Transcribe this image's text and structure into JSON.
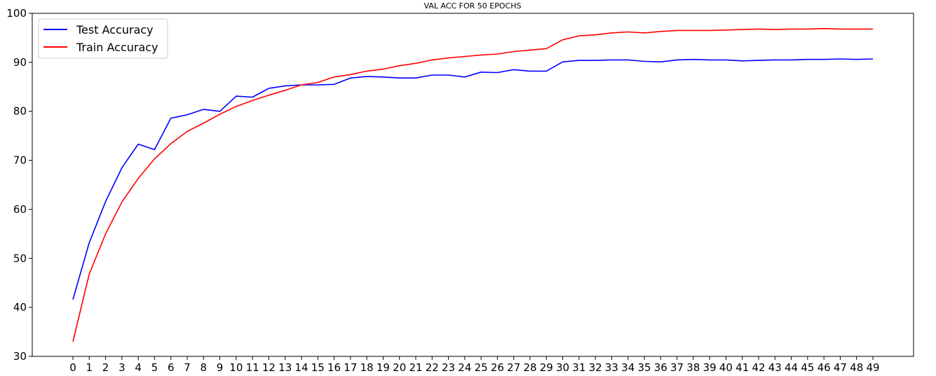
{
  "chart_data": {
    "type": "line",
    "title": "VAL ACC FOR 50 EPOCHS",
    "xlabel": "",
    "ylabel": "",
    "x": [
      0,
      1,
      2,
      3,
      4,
      5,
      6,
      7,
      8,
      9,
      10,
      11,
      12,
      13,
      14,
      15,
      16,
      17,
      18,
      19,
      20,
      21,
      22,
      23,
      24,
      25,
      26,
      27,
      28,
      29,
      30,
      31,
      32,
      33,
      34,
      35,
      36,
      37,
      38,
      39,
      40,
      41,
      42,
      43,
      44,
      45,
      46,
      47,
      48,
      49
    ],
    "xticklabels": [
      "0",
      "1",
      "2",
      "3",
      "4",
      "5",
      "6",
      "7",
      "8",
      "9",
      "10",
      "11",
      "12",
      "13",
      "14",
      "15",
      "16",
      "17",
      "18",
      "19",
      "20",
      "21",
      "22",
      "23",
      "24",
      "25",
      "26",
      "27",
      "28",
      "29",
      "30",
      "31",
      "32",
      "33",
      "34",
      "35",
      "36",
      "37",
      "38",
      "39",
      "40",
      "41",
      "42",
      "43",
      "44",
      "45",
      "46",
      "47",
      "48",
      "49"
    ],
    "ylim": [
      30,
      100
    ],
    "yticks": [
      30,
      40,
      50,
      60,
      70,
      80,
      90,
      100
    ],
    "yticklabels": [
      "30",
      "40",
      "50",
      "60",
      "70",
      "80",
      "90",
      "100"
    ],
    "grid": false,
    "legend_position": "top-left",
    "series": [
      {
        "name": "Test Accuracy",
        "color": "#0000ff",
        "values": [
          41.6,
          53.2,
          61.6,
          68.5,
          73.3,
          72.2,
          78.6,
          79.3,
          80.4,
          80.0,
          83.1,
          82.9,
          84.7,
          85.2,
          85.4,
          85.4,
          85.5,
          86.8,
          87.1,
          87.0,
          86.8,
          86.8,
          87.4,
          87.4,
          87.0,
          88.0,
          87.9,
          88.5,
          88.2,
          88.2,
          90.1,
          90.4,
          90.4,
          90.5,
          90.5,
          90.2,
          90.1,
          90.5,
          90.6,
          90.5,
          90.5,
          90.3,
          90.4,
          90.5,
          90.5,
          90.6,
          90.6,
          90.7,
          90.6,
          90.7
        ]
      },
      {
        "name": "Train Accuracy",
        "color": "#ff0000",
        "values": [
          33.0,
          46.8,
          55.0,
          61.5,
          66.3,
          70.3,
          73.4,
          75.9,
          77.6,
          79.4,
          81.0,
          82.2,
          83.3,
          84.3,
          85.4,
          85.9,
          87.0,
          87.5,
          88.2,
          88.6,
          89.3,
          89.8,
          90.5,
          90.9,
          91.2,
          91.5,
          91.7,
          92.2,
          92.5,
          92.8,
          94.6,
          95.4,
          95.6,
          96.0,
          96.2,
          96.0,
          96.3,
          96.5,
          96.5,
          96.5,
          96.6,
          96.7,
          96.8,
          96.7,
          96.8,
          96.8,
          96.9,
          96.8,
          96.8,
          96.8
        ]
      }
    ]
  }
}
